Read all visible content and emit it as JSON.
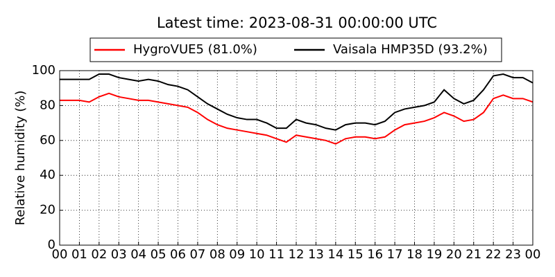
{
  "chart_data": {
    "type": "line",
    "title": "Latest time: 2023-08-31 00:00:00 UTC",
    "y_label": "Relative humidity (%)",
    "x": [
      0,
      0.5,
      1,
      1.5,
      2,
      2.5,
      3,
      3.5,
      4,
      4.5,
      5,
      5.5,
      6,
      6.5,
      7,
      7.5,
      8,
      8.5,
      9,
      9.5,
      10,
      10.5,
      11,
      11.5,
      12,
      12.5,
      13,
      13.5,
      14,
      14.5,
      15,
      15.5,
      16,
      16.5,
      17,
      17.5,
      18,
      18.5,
      19,
      19.5,
      20,
      20.5,
      21,
      21.5,
      22,
      22.5,
      23,
      23.5,
      24
    ],
    "series": [
      {
        "name": "HygroVUE5 (81.0%)",
        "color": "#ff0000",
        "values": [
          83,
          83,
          83,
          82,
          85,
          87,
          85,
          84,
          83,
          83,
          82,
          81,
          80,
          79,
          76,
          72,
          69,
          67,
          66,
          65,
          64,
          63,
          61,
          59,
          63,
          62,
          61,
          60,
          58,
          61,
          62,
          62,
          61,
          62,
          66,
          69,
          70,
          71,
          73,
          76,
          74,
          71,
          72,
          76,
          84,
          86,
          84,
          84,
          82
        ]
      },
      {
        "name": "Vaisala HMP35D (93.2%)",
        "color": "#000000",
        "values": [
          95,
          95,
          95,
          95,
          98,
          98,
          96,
          95,
          94,
          95,
          94,
          92,
          91,
          89,
          85,
          81,
          78,
          75,
          73,
          72,
          72,
          70,
          67,
          67,
          72,
          70,
          69,
          67,
          66,
          69,
          70,
          70,
          69,
          71,
          76,
          78,
          79,
          80,
          82,
          89,
          84,
          81,
          83,
          89,
          97,
          98,
          96,
          96,
          93
        ]
      }
    ],
    "xlim": [
      0,
      24
    ],
    "xticks": [
      {
        "value": 0,
        "label": "00"
      },
      {
        "value": 1,
        "label": "01"
      },
      {
        "value": 2,
        "label": "02"
      },
      {
        "value": 3,
        "label": "03"
      },
      {
        "value": 4,
        "label": "04"
      },
      {
        "value": 5,
        "label": "05"
      },
      {
        "value": 6,
        "label": "06"
      },
      {
        "value": 7,
        "label": "07"
      },
      {
        "value": 8,
        "label": "08"
      },
      {
        "value": 9,
        "label": "09"
      },
      {
        "value": 10,
        "label": "10"
      },
      {
        "value": 11,
        "label": "11"
      },
      {
        "value": 12,
        "label": "12"
      },
      {
        "value": 13,
        "label": "13"
      },
      {
        "value": 14,
        "label": "14"
      },
      {
        "value": 15,
        "label": "15"
      },
      {
        "value": 16,
        "label": "16"
      },
      {
        "value": 17,
        "label": "17"
      },
      {
        "value": 18,
        "label": "18"
      },
      {
        "value": 19,
        "label": "19"
      },
      {
        "value": 20,
        "label": "20"
      },
      {
        "value": 21,
        "label": "21"
      },
      {
        "value": 22,
        "label": "22"
      },
      {
        "value": 23,
        "label": "23"
      },
      {
        "value": 24,
        "label": "00"
      }
    ],
    "ylim": [
      0,
      100
    ],
    "yticks": [
      0,
      20,
      40,
      60,
      80,
      100
    ],
    "grid": true
  }
}
